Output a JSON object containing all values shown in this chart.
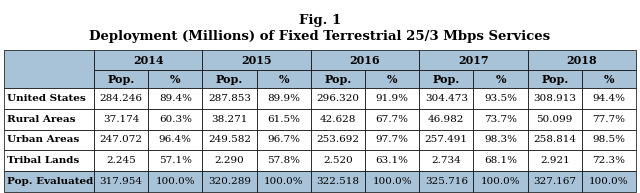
{
  "title_line1": "Fig. 1",
  "title_line2": "Deployment (Millions) of Fixed Terrestrial 25/3 Mbps Services",
  "years": [
    "2014",
    "2015",
    "2016",
    "2017",
    "2018"
  ],
  "subheaders": [
    "Pop.",
    "%",
    "Pop.",
    "%",
    "Pop.",
    "%",
    "Pop.",
    "%",
    "Pop.",
    "%"
  ],
  "row_labels": [
    "United States",
    "Rural Areas",
    "Urban Areas",
    "Tribal Lands",
    "Pop. Evaluated"
  ],
  "table_data": [
    [
      "284.246",
      "89.4%",
      "287.853",
      "89.9%",
      "296.320",
      "91.9%",
      "304.473",
      "93.5%",
      "308.913",
      "94.4%"
    ],
    [
      "37.174",
      "60.3%",
      "38.271",
      "61.5%",
      "42.628",
      "67.7%",
      "46.982",
      "73.7%",
      "50.099",
      "77.7%"
    ],
    [
      "247.072",
      "96.4%",
      "249.582",
      "96.7%",
      "253.692",
      "97.7%",
      "257.491",
      "98.3%",
      "258.814",
      "98.5%"
    ],
    [
      "2.245",
      "57.1%",
      "2.290",
      "57.8%",
      "2.520",
      "63.1%",
      "2.734",
      "68.1%",
      "2.921",
      "72.3%"
    ],
    [
      "317.954",
      "100.0%",
      "320.289",
      "100.0%",
      "322.518",
      "100.0%",
      "325.716",
      "100.0%",
      "327.167",
      "100.0%"
    ]
  ],
  "header_bg": "#a8c3d8",
  "data_bg": "#ffffff",
  "last_row_bg": "#a8c3d8",
  "border_color": "#000000",
  "text_color": "#000000",
  "title_fontsize": 9.5,
  "cell_fontsize": 7.5,
  "header_fontsize": 8.0,
  "fig_width": 6.4,
  "fig_height": 1.93,
  "dpi": 100
}
